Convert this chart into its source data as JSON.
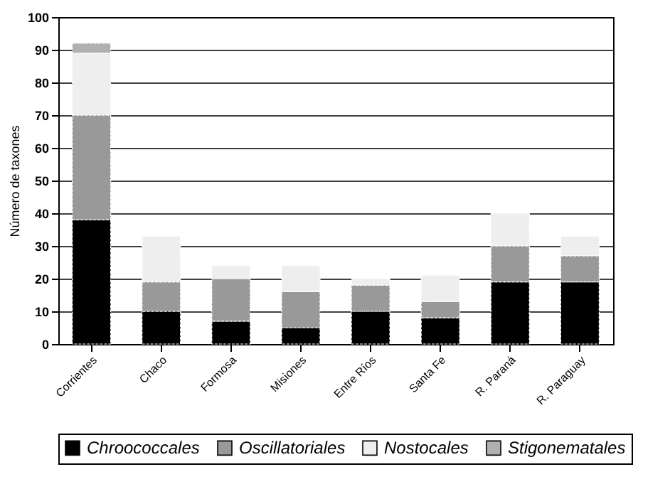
{
  "chart_data": {
    "type": "bar",
    "ylabel": "Número de taxones",
    "categories": [
      "Corrientes",
      "Chaco",
      "Formosa",
      "Misiones",
      "Entre Ríos",
      "Santa Fe",
      "R. Paraná",
      "R. Paraguay"
    ],
    "series": [
      {
        "name": "Chroococcales",
        "color": "#000000",
        "values": [
          38,
          10,
          7,
          5,
          10,
          8,
          19,
          19
        ]
      },
      {
        "name": "Oscillatoriales",
        "color": "#999999",
        "values": [
          32,
          9,
          13,
          11,
          8,
          5,
          11,
          8
        ]
      },
      {
        "name": "Nostocales",
        "color": "#eeeeee",
        "values": [
          19,
          14,
          4,
          8,
          2,
          8,
          10,
          6
        ]
      },
      {
        "name": "Stigonematales",
        "color": "#b0b0b0",
        "values": [
          3,
          null,
          null,
          null,
          null,
          null,
          null,
          null
        ]
      }
    ],
    "stacked": true,
    "ylim": [
      0,
      100
    ],
    "yticks": [
      0,
      10,
      20,
      30,
      40,
      50,
      60,
      70,
      80,
      90,
      100
    ],
    "grid": "y",
    "legend": "bottom"
  }
}
